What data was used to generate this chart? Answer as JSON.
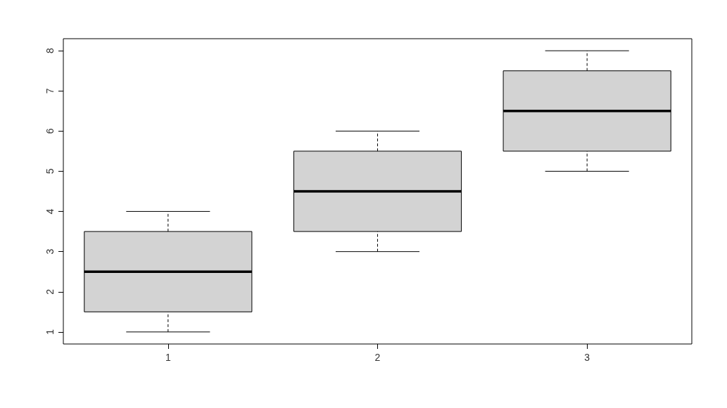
{
  "chart_data": {
    "type": "box",
    "categories": [
      "1",
      "2",
      "3"
    ],
    "series": [
      {
        "color": "#d3d3d3",
        "boxes": [
          {
            "low": 1,
            "q1": 1.5,
            "median": 2.5,
            "q3": 3.5,
            "high": 4
          },
          {
            "low": 3,
            "q1": 3.5,
            "median": 4.5,
            "q3": 5.5,
            "high": 6
          },
          {
            "low": 5,
            "q1": 5.5,
            "median": 6.5,
            "q3": 7.5,
            "high": 8
          }
        ]
      }
    ],
    "ylim": [
      0.7,
      8.3
    ],
    "yticks": [
      1,
      2,
      3,
      4,
      5,
      6,
      7,
      8
    ]
  }
}
